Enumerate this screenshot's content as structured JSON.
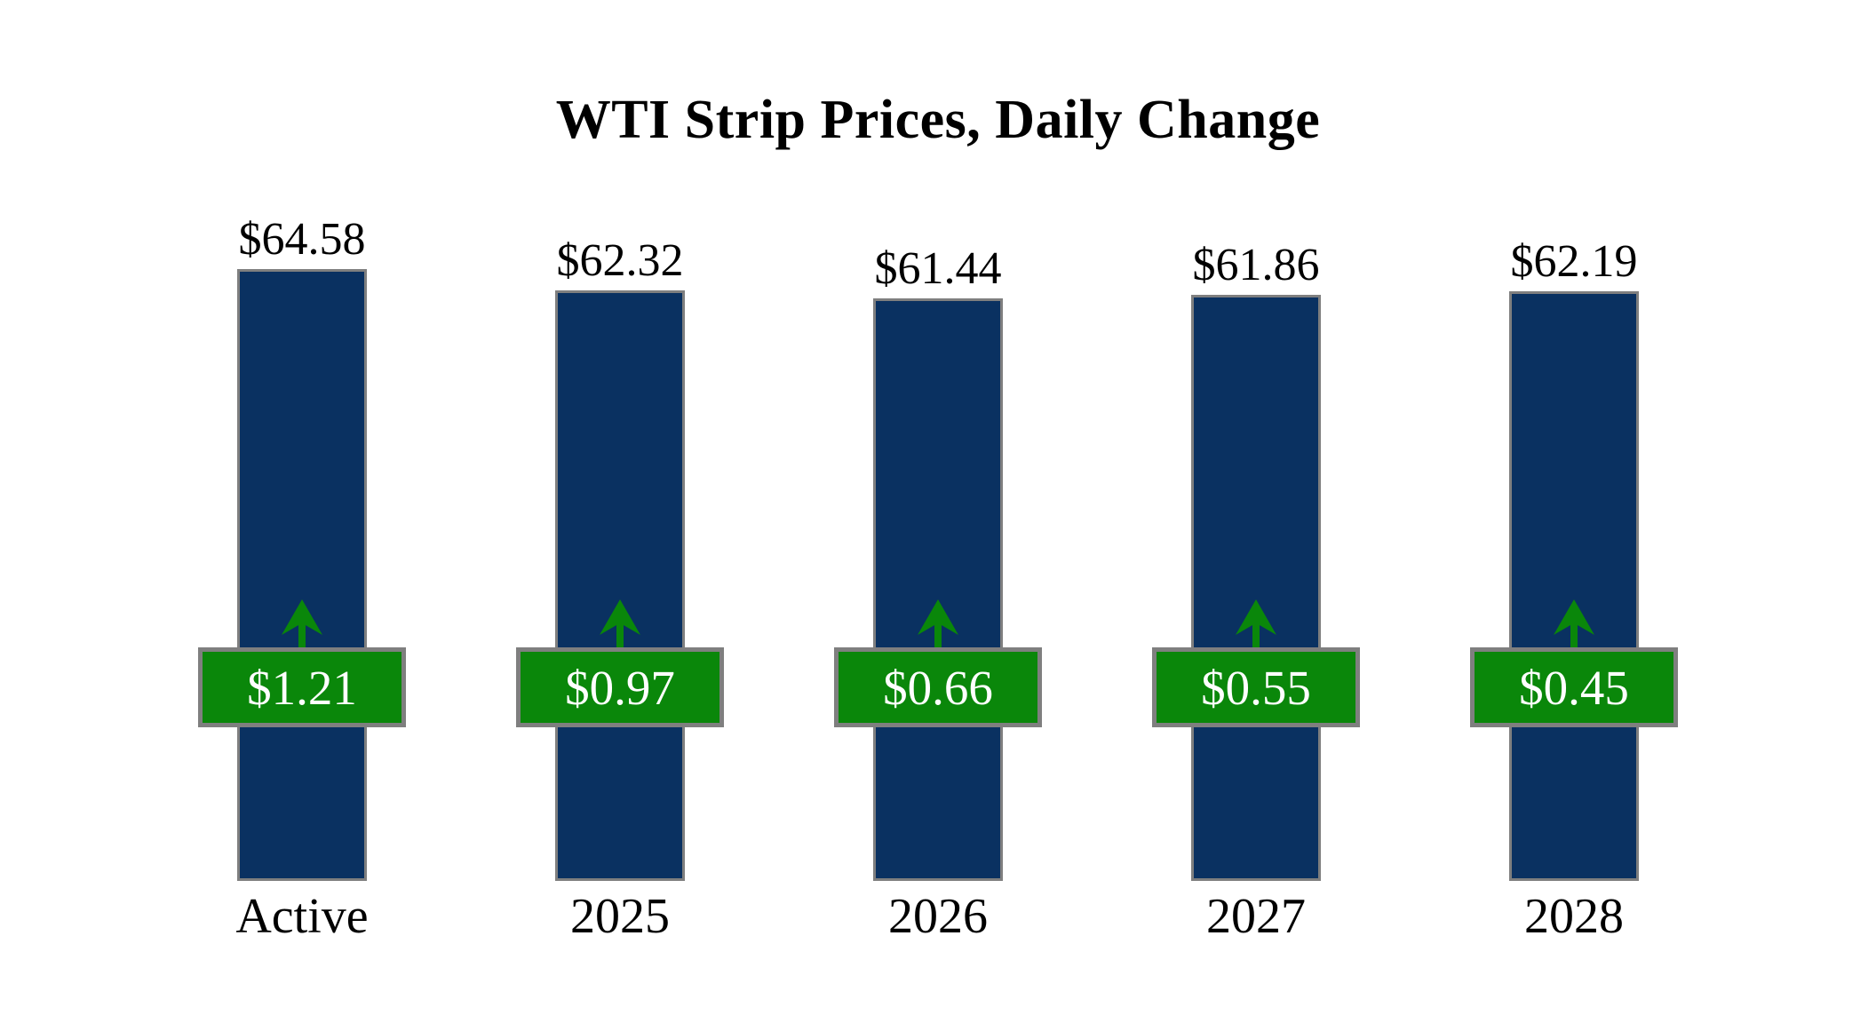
{
  "title": "WTI Strip Prices, Daily Change",
  "chart_data": {
    "type": "bar",
    "title": "WTI Strip Prices, Daily Change",
    "categories": [
      "Active",
      "2025",
      "2026",
      "2027",
      "2028"
    ],
    "series": [
      {
        "name": "Strip Price",
        "values": [
          64.58,
          62.32,
          61.44,
          61.86,
          62.19
        ]
      },
      {
        "name": "Daily Change",
        "values": [
          1.21,
          0.97,
          0.66,
          0.55,
          0.45
        ]
      }
    ],
    "bars": [
      {
        "category": "Active",
        "price": 64.58,
        "price_label": "$64.58",
        "change": 1.21,
        "change_label": "$1.21",
        "direction": "up"
      },
      {
        "category": "2025",
        "price": 62.32,
        "price_label": "$62.32",
        "change": 0.97,
        "change_label": "$0.97",
        "direction": "up"
      },
      {
        "category": "2026",
        "price": 61.44,
        "price_label": "$61.44",
        "change": 0.66,
        "change_label": "$0.66",
        "direction": "up"
      },
      {
        "category": "2027",
        "price": 61.86,
        "price_label": "$61.86",
        "change": 0.55,
        "change_label": "$0.55",
        "direction": "up"
      },
      {
        "category": "2028",
        "price": 62.19,
        "price_label": "$62.19",
        "change": 0.45,
        "change_label": "$0.45",
        "direction": "up"
      }
    ],
    "ylim": [
      0,
      64.58
    ],
    "grid": false,
    "legend": "none",
    "colors": {
      "bar_fill": "#0a3161",
      "bar_border": "#7f7f7f",
      "badge_fill": "#0a870a",
      "badge_border": "#7f7f7f",
      "badge_text": "#ffffff",
      "arrow": "#0a870a",
      "label_text": "#000000",
      "background": "#ffffff"
    }
  }
}
